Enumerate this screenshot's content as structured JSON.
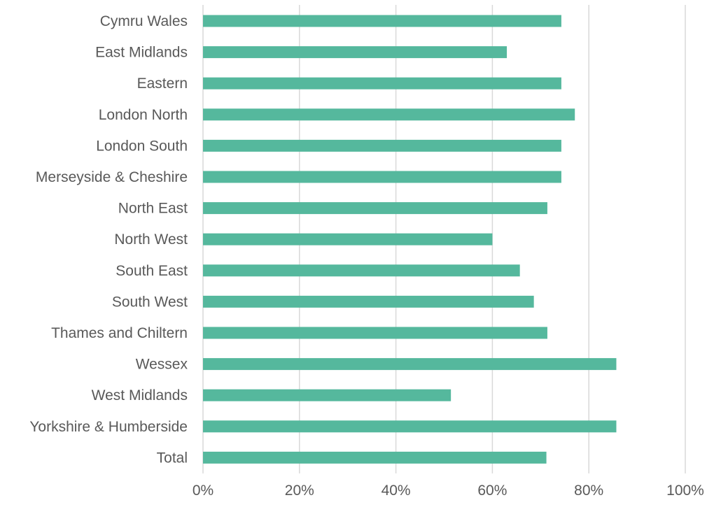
{
  "chart_data": {
    "type": "bar",
    "orientation": "horizontal",
    "title": "",
    "xlabel": "",
    "ylabel": "",
    "xlim": [
      0,
      100
    ],
    "grid": true,
    "x_ticks": [
      "0%",
      "20%",
      "40%",
      "60%",
      "80%",
      "100%"
    ],
    "categories": [
      "Cymru Wales",
      "East Midlands",
      "Eastern",
      "London North",
      "London South",
      "Merseyside & Cheshire",
      "North East",
      "North West",
      "South East",
      "South West",
      "Thames and Chiltern",
      "Wessex",
      "West Midlands",
      "Yorkshire & Humberside",
      "Total"
    ],
    "values": [
      74.3,
      63.0,
      74.3,
      77.1,
      74.3,
      74.3,
      71.4,
      60.0,
      65.7,
      68.6,
      71.4,
      85.7,
      51.4,
      85.7,
      71.2
    ],
    "colors": {
      "bar": "#55b89d",
      "grid": "#d9d9d9",
      "label": "#595959"
    }
  }
}
